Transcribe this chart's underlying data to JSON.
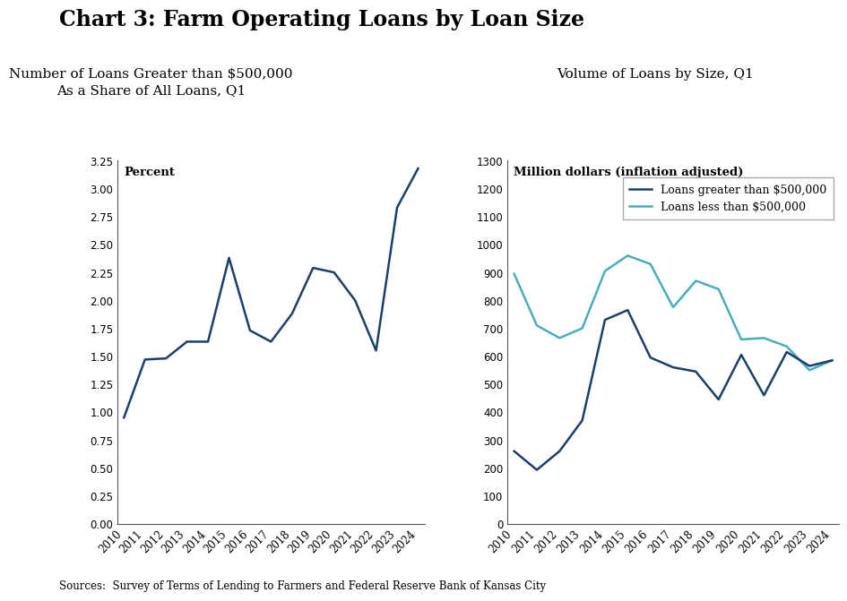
{
  "title": "Chart 3: Farm Operating Loans by Loan Size",
  "left_subtitle": "Number of Loans Greater than $500,000\nAs a Share of All Loans, Q1",
  "right_subtitle": "Volume of Loans by Size, Q1",
  "left_ylabel": "Percent",
  "right_ylabel": "Million dollars (inflation adjusted)",
  "years": [
    2010,
    2011,
    2012,
    2013,
    2014,
    2015,
    2016,
    2017,
    2018,
    2019,
    2020,
    2021,
    2022,
    2023,
    2024
  ],
  "left_data": [
    0.95,
    1.47,
    1.48,
    1.63,
    1.63,
    2.38,
    1.73,
    1.63,
    1.88,
    2.29,
    2.25,
    2.0,
    1.55,
    2.83,
    3.18
  ],
  "right_greater": [
    260,
    193,
    260,
    370,
    730,
    765,
    595,
    560,
    545,
    445,
    605,
    460,
    615,
    565,
    585
  ],
  "right_less": [
    895,
    710,
    665,
    700,
    905,
    960,
    930,
    775,
    870,
    840,
    660,
    665,
    635,
    550,
    585
  ],
  "line_color_dark": "#1b3f6b",
  "line_color_light": "#4aadbe",
  "left_ylim": [
    0.0,
    3.25
  ],
  "left_yticks": [
    0.0,
    0.25,
    0.5,
    0.75,
    1.0,
    1.25,
    1.5,
    1.75,
    2.0,
    2.25,
    2.5,
    2.75,
    3.0,
    3.25
  ],
  "right_ylim": [
    0,
    1300
  ],
  "right_yticks": [
    0,
    100,
    200,
    300,
    400,
    500,
    600,
    700,
    800,
    900,
    1000,
    1100,
    1200,
    1300
  ],
  "legend_greater": "Loans greater than $500,000",
  "legend_less": "Loans less than $500,000",
  "source_text": "Sources:  Survey of Terms of Lending to Farmers and Federal Reserve Bank of Kansas City",
  "background_color": "#ffffff",
  "line_width": 1.8
}
